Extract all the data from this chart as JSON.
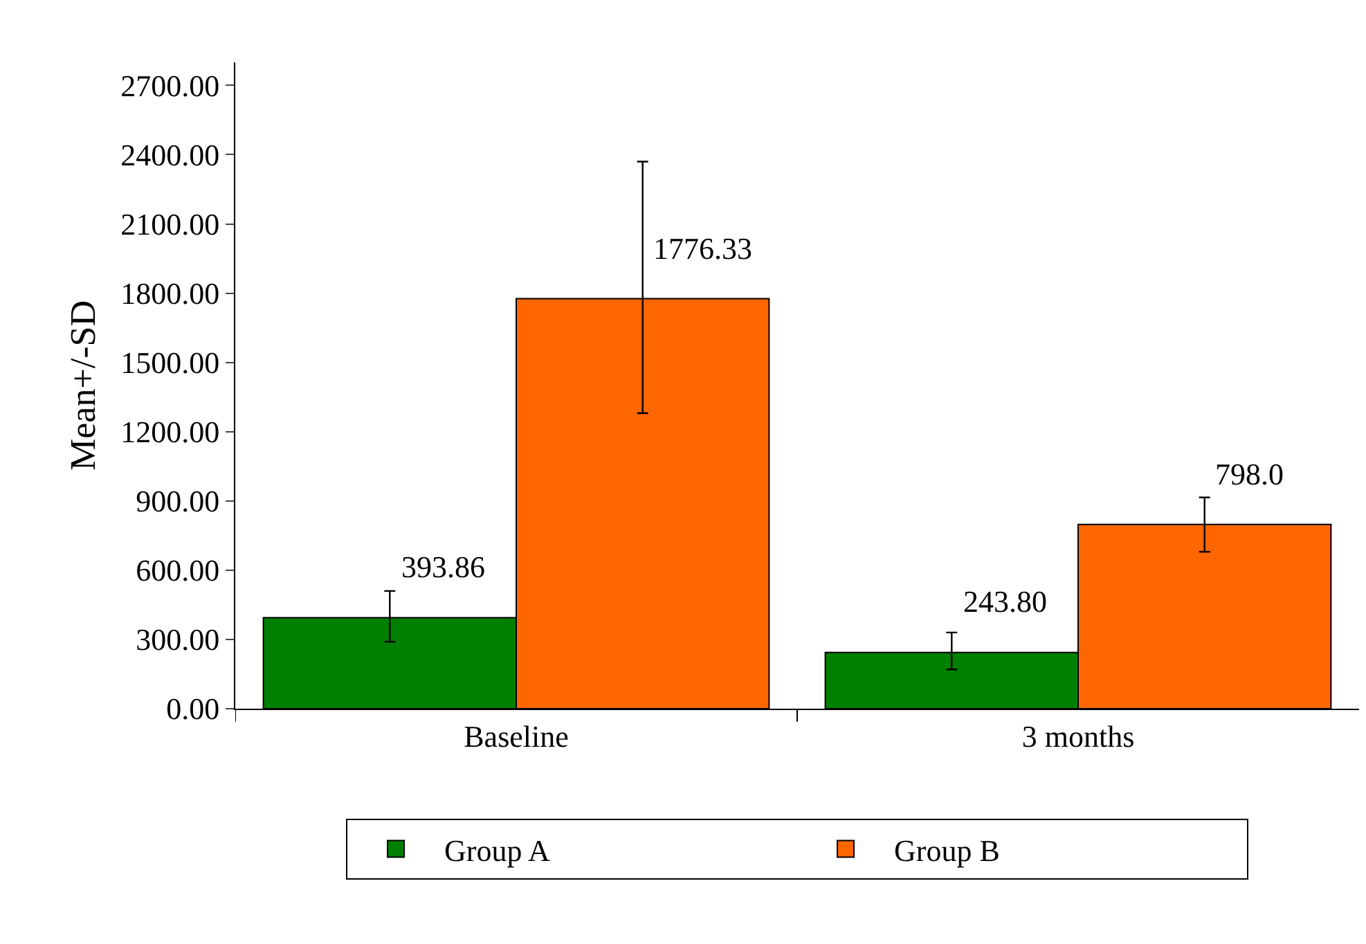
{
  "chart_data": {
    "type": "bar",
    "ylabel": "Mean+/-SD",
    "categories": [
      "Baseline",
      "3 months"
    ],
    "series": [
      {
        "name": "Group A",
        "color": "#008000",
        "values": [
          393.86,
          243.8
        ],
        "value_labels": [
          "393.86",
          "243.80"
        ],
        "errors": [
          [
            290,
            510
          ],
          [
            170,
            330
          ]
        ]
      },
      {
        "name": "Group B",
        "color": "#ff6600",
        "values": [
          1776.33,
          798.0
        ],
        "value_labels": [
          "1776.33",
          "798.0"
        ],
        "errors": [
          [
            1280,
            2370
          ],
          [
            680,
            915
          ]
        ]
      }
    ],
    "ylim": [
      0,
      2800
    ],
    "yticks": [
      {
        "value": 0,
        "label": "0.00"
      },
      {
        "value": 300,
        "label": "300.00"
      },
      {
        "value": 600,
        "label": "600.00"
      },
      {
        "value": 900,
        "label": "900.00"
      },
      {
        "value": 1200,
        "label": "1200.00"
      },
      {
        "value": 1500,
        "label": "1500.00"
      },
      {
        "value": 1800,
        "label": "1800.00"
      },
      {
        "value": 2100,
        "label": "2100.00"
      },
      {
        "value": 2400,
        "label": "2400.00"
      },
      {
        "value": 2700,
        "label": "2700.00"
      }
    ],
    "legend": "bottom"
  }
}
